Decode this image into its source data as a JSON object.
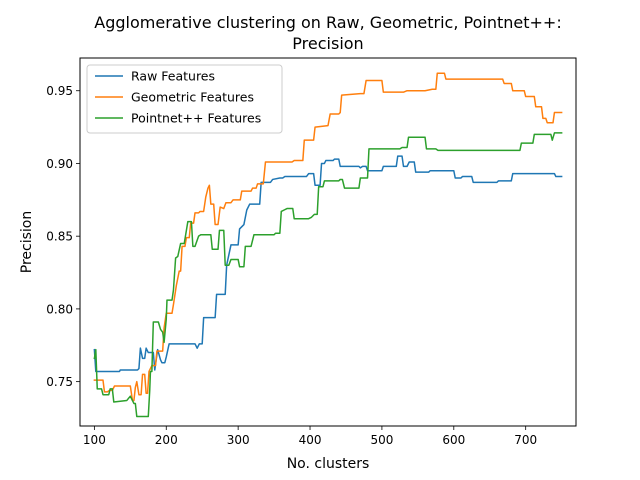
{
  "chart_data": {
    "type": "line",
    "title": "Agglomerative clustering on Raw, Geometric, Pointnet++:",
    "subtitle": "Precision",
    "xlabel": "No. clusters",
    "ylabel": "Precision",
    "xlim": [
      80,
      770
    ],
    "ylim": [
      0.7195,
      0.9725
    ],
    "xticks": [
      100,
      200,
      300,
      400,
      500,
      600,
      700
    ],
    "yticks": [
      0.75,
      0.8,
      0.85,
      0.9,
      0.95
    ],
    "ytick_labels": [
      "0.75",
      "0.80",
      "0.85",
      "0.90",
      "0.95"
    ],
    "grid": false,
    "legend_position": "top-left",
    "series": [
      {
        "name": "Raw Features",
        "color": "#1f77b4",
        "points": [
          [
            100,
            0.772
          ],
          [
            102,
            0.757
          ],
          [
            110,
            0.757
          ],
          [
            135,
            0.757
          ],
          [
            136,
            0.758
          ],
          [
            160,
            0.758
          ],
          [
            162,
            0.759
          ],
          [
            164,
            0.773
          ],
          [
            167,
            0.766
          ],
          [
            170,
            0.766
          ],
          [
            172,
            0.773
          ],
          [
            175,
            0.77
          ],
          [
            182,
            0.77
          ],
          [
            184,
            0.758
          ],
          [
            188,
            0.772
          ],
          [
            192,
            0.765
          ],
          [
            194,
            0.763
          ],
          [
            198,
            0.763
          ],
          [
            200,
            0.767
          ],
          [
            204,
            0.776
          ],
          [
            210,
            0.776
          ],
          [
            240,
            0.776
          ],
          [
            243,
            0.773
          ],
          [
            246,
            0.776
          ],
          [
            250,
            0.776
          ],
          [
            252,
            0.794
          ],
          [
            268,
            0.794
          ],
          [
            270,
            0.81
          ],
          [
            282,
            0.81
          ],
          [
            284,
            0.83
          ],
          [
            287,
            0.837
          ],
          [
            290,
            0.844
          ],
          [
            300,
            0.844
          ],
          [
            302,
            0.855
          ],
          [
            308,
            0.858
          ],
          [
            312,
            0.868
          ],
          [
            316,
            0.872
          ],
          [
            330,
            0.872
          ],
          [
            332,
            0.887
          ],
          [
            345,
            0.887
          ],
          [
            348,
            0.889
          ],
          [
            358,
            0.89
          ],
          [
            362,
            0.89
          ],
          [
            365,
            0.891
          ],
          [
            395,
            0.891
          ],
          [
            398,
            0.893
          ],
          [
            405,
            0.893
          ],
          [
            407,
            0.885
          ],
          [
            414,
            0.885
          ],
          [
            416,
            0.9
          ],
          [
            420,
            0.9
          ],
          [
            422,
            0.902
          ],
          [
            432,
            0.902
          ],
          [
            434,
            0.903
          ],
          [
            440,
            0.903
          ],
          [
            442,
            0.898
          ],
          [
            468,
            0.898
          ],
          [
            470,
            0.897
          ],
          [
            473,
            0.898
          ],
          [
            478,
            0.898
          ],
          [
            480,
            0.895
          ],
          [
            500,
            0.895
          ],
          [
            502,
            0.898
          ],
          [
            520,
            0.898
          ],
          [
            522,
            0.905
          ],
          [
            528,
            0.905
          ],
          [
            530,
            0.898
          ],
          [
            535,
            0.898
          ],
          [
            538,
            0.901
          ],
          [
            545,
            0.901
          ],
          [
            547,
            0.894
          ],
          [
            565,
            0.894
          ],
          [
            567,
            0.895
          ],
          [
            600,
            0.895
          ],
          [
            602,
            0.89
          ],
          [
            610,
            0.89
          ],
          [
            612,
            0.891
          ],
          [
            625,
            0.891
          ],
          [
            627,
            0.887
          ],
          [
            660,
            0.887
          ],
          [
            662,
            0.888
          ],
          [
            680,
            0.888
          ],
          [
            682,
            0.893
          ],
          [
            730,
            0.893
          ],
          [
            732,
            0.893
          ],
          [
            740,
            0.893
          ],
          [
            742,
            0.891
          ],
          [
            750,
            0.891
          ]
        ]
      },
      {
        "name": "Geometric Features",
        "color": "#ff7f0e",
        "points": [
          [
            100,
            0.751
          ],
          [
            112,
            0.751
          ],
          [
            114,
            0.743
          ],
          [
            118,
            0.743
          ],
          [
            121,
            0.744
          ],
          [
            125,
            0.744
          ],
          [
            128,
            0.747
          ],
          [
            150,
            0.747
          ],
          [
            153,
            0.737
          ],
          [
            155,
            0.737
          ],
          [
            157,
            0.746
          ],
          [
            159,
            0.75
          ],
          [
            162,
            0.741
          ],
          [
            165,
            0.741
          ],
          [
            167,
            0.755
          ],
          [
            170,
            0.755
          ],
          [
            172,
            0.742
          ],
          [
            174,
            0.742
          ],
          [
            176,
            0.757
          ],
          [
            180,
            0.761
          ],
          [
            185,
            0.761
          ],
          [
            187,
            0.771
          ],
          [
            195,
            0.771
          ],
          [
            197,
            0.787
          ],
          [
            200,
            0.797
          ],
          [
            208,
            0.797
          ],
          [
            210,
            0.803
          ],
          [
            214,
            0.816
          ],
          [
            218,
            0.826
          ],
          [
            220,
            0.826
          ],
          [
            222,
            0.843
          ],
          [
            226,
            0.843
          ],
          [
            228,
            0.849
          ],
          [
            232,
            0.849
          ],
          [
            234,
            0.859
          ],
          [
            238,
            0.859
          ],
          [
            240,
            0.866
          ],
          [
            245,
            0.866
          ],
          [
            247,
            0.867
          ],
          [
            252,
            0.867
          ],
          [
            255,
            0.877
          ],
          [
            258,
            0.883
          ],
          [
            260,
            0.885
          ],
          [
            262,
            0.872
          ],
          [
            266,
            0.872
          ],
          [
            268,
            0.858
          ],
          [
            272,
            0.858
          ],
          [
            275,
            0.87
          ],
          [
            280,
            0.869
          ],
          [
            283,
            0.873
          ],
          [
            290,
            0.873
          ],
          [
            293,
            0.875
          ],
          [
            303,
            0.875
          ],
          [
            305,
            0.881
          ],
          [
            318,
            0.881
          ],
          [
            320,
            0.883
          ],
          [
            325,
            0.883
          ],
          [
            327,
            0.886
          ],
          [
            335,
            0.886
          ],
          [
            338,
            0.901
          ],
          [
            375,
            0.901
          ],
          [
            378,
            0.902
          ],
          [
            390,
            0.902
          ],
          [
            392,
            0.916
          ],
          [
            405,
            0.916
          ],
          [
            407,
            0.925
          ],
          [
            425,
            0.926
          ],
          [
            428,
            0.934
          ],
          [
            440,
            0.934
          ],
          [
            442,
            0.935
          ],
          [
            444,
            0.947
          ],
          [
            470,
            0.948
          ],
          [
            475,
            0.948
          ],
          [
            478,
            0.957
          ],
          [
            500,
            0.957
          ],
          [
            502,
            0.949
          ],
          [
            530,
            0.949
          ],
          [
            535,
            0.95
          ],
          [
            560,
            0.95
          ],
          [
            570,
            0.951
          ],
          [
            575,
            0.951
          ],
          [
            577,
            0.962
          ],
          [
            587,
            0.962
          ],
          [
            589,
            0.958
          ],
          [
            605,
            0.958
          ],
          [
            620,
            0.958
          ],
          [
            640,
            0.958
          ],
          [
            668,
            0.958
          ],
          [
            670,
            0.955
          ],
          [
            680,
            0.955
          ],
          [
            682,
            0.95
          ],
          [
            698,
            0.95
          ],
          [
            700,
            0.946
          ],
          [
            712,
            0.946
          ],
          [
            714,
            0.939
          ],
          [
            722,
            0.939
          ],
          [
            724,
            0.931
          ],
          [
            728,
            0.931
          ],
          [
            730,
            0.928
          ],
          [
            738,
            0.928
          ],
          [
            740,
            0.935
          ],
          [
            750,
            0.935
          ]
        ]
      },
      {
        "name": "Pointnet++ Features",
        "color": "#2ca02c",
        "points": [
          [
            100,
            0.766
          ],
          [
            102,
            0.772
          ],
          [
            104,
            0.745
          ],
          [
            110,
            0.745
          ],
          [
            112,
            0.741
          ],
          [
            120,
            0.741
          ],
          [
            122,
            0.745
          ],
          [
            125,
            0.745
          ],
          [
            127,
            0.736
          ],
          [
            145,
            0.737
          ],
          [
            150,
            0.74
          ],
          [
            153,
            0.737
          ],
          [
            155,
            0.735
          ],
          [
            157,
            0.735
          ],
          [
            159,
            0.726
          ],
          [
            170,
            0.726
          ],
          [
            175,
            0.726
          ],
          [
            177,
            0.744
          ],
          [
            178,
            0.757
          ],
          [
            180,
            0.757
          ],
          [
            182,
            0.791
          ],
          [
            189,
            0.791
          ],
          [
            192,
            0.786
          ],
          [
            195,
            0.784
          ],
          [
            197,
            0.777
          ],
          [
            200,
            0.793
          ],
          [
            201,
            0.806
          ],
          [
            208,
            0.806
          ],
          [
            210,
            0.813
          ],
          [
            213,
            0.835
          ],
          [
            216,
            0.836
          ],
          [
            220,
            0.845
          ],
          [
            225,
            0.845
          ],
          [
            230,
            0.86
          ],
          [
            235,
            0.86
          ],
          [
            237,
            0.843
          ],
          [
            240,
            0.843
          ],
          [
            245,
            0.85
          ],
          [
            248,
            0.851
          ],
          [
            262,
            0.851
          ],
          [
            264,
            0.841
          ],
          [
            272,
            0.841
          ],
          [
            274,
            0.854
          ],
          [
            280,
            0.854
          ],
          [
            282,
            0.83
          ],
          [
            287,
            0.83
          ],
          [
            290,
            0.834
          ],
          [
            296,
            0.834
          ],
          [
            300,
            0.834
          ],
          [
            302,
            0.829
          ],
          [
            308,
            0.829
          ],
          [
            310,
            0.843
          ],
          [
            318,
            0.843
          ],
          [
            322,
            0.851
          ],
          [
            350,
            0.851
          ],
          [
            352,
            0.852
          ],
          [
            358,
            0.852
          ],
          [
            360,
            0.867
          ],
          [
            364,
            0.868
          ],
          [
            368,
            0.869
          ],
          [
            376,
            0.869
          ],
          [
            378,
            0.862
          ],
          [
            398,
            0.862
          ],
          [
            402,
            0.863
          ],
          [
            406,
            0.865
          ],
          [
            410,
            0.865
          ],
          [
            412,
            0.884
          ],
          [
            418,
            0.884
          ],
          [
            420,
            0.888
          ],
          [
            440,
            0.888
          ],
          [
            442,
            0.889
          ],
          [
            445,
            0.889
          ],
          [
            448,
            0.883
          ],
          [
            468,
            0.883
          ],
          [
            470,
            0.89
          ],
          [
            480,
            0.89
          ],
          [
            482,
            0.91
          ],
          [
            500,
            0.91
          ],
          [
            502,
            0.91
          ],
          [
            525,
            0.91
          ],
          [
            528,
            0.911
          ],
          [
            535,
            0.911
          ],
          [
            537,
            0.918
          ],
          [
            560,
            0.918
          ],
          [
            562,
            0.91
          ],
          [
            575,
            0.91
          ],
          [
            578,
            0.909
          ],
          [
            600,
            0.909
          ],
          [
            620,
            0.909
          ],
          [
            660,
            0.909
          ],
          [
            670,
            0.909
          ],
          [
            692,
            0.909
          ],
          [
            694,
            0.914
          ],
          [
            710,
            0.914
          ],
          [
            712,
            0.92
          ],
          [
            735,
            0.92
          ],
          [
            737,
            0.916
          ],
          [
            740,
            0.921
          ],
          [
            750,
            0.921
          ]
        ]
      }
    ]
  }
}
